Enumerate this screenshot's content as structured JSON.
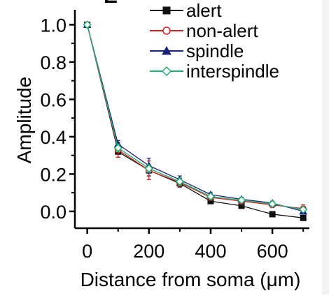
{
  "chart_data": {
    "type": "line",
    "xlabel": "Distance from soma (μm)",
    "ylabel": "Amplitude",
    "xlim": [
      -40,
      720
    ],
    "ylim": [
      -0.09,
      1.08
    ],
    "xticks": [
      0,
      200,
      400,
      600
    ],
    "xtick_labels": [
      "0",
      "200",
      "400",
      "600"
    ],
    "yticks": [
      0.0,
      0.2,
      0.4,
      0.6,
      0.8,
      1.0
    ],
    "ytick_labels": [
      "0.0",
      "0.2",
      "0.4",
      "0.6",
      "0.8",
      "1.0"
    ],
    "x_minor_ticks": [
      100,
      300,
      500,
      700
    ],
    "y_minor_ticks": [
      0.1,
      0.3,
      0.5,
      0.7,
      0.9
    ],
    "grid": false,
    "legend_position": "top-right",
    "x": [
      0,
      100,
      200,
      300,
      400,
      500,
      600,
      700
    ],
    "series": [
      {
        "name": "alert",
        "color": "#111111",
        "marker": "square-filled",
        "values": [
          1.0,
          0.32,
          0.22,
          0.15,
          0.055,
          0.03,
          -0.015,
          -0.035
        ],
        "errors": [
          0.0,
          0.03,
          0.03,
          0.02,
          0.01,
          0.01,
          0.01,
          0.01
        ]
      },
      {
        "name": "non-alert",
        "color": "#d32222",
        "marker": "circle-open",
        "values": [
          1.0,
          0.33,
          0.22,
          0.155,
          0.075,
          0.055,
          0.035,
          0.015
        ],
        "errors": [
          0.0,
          0.04,
          0.05,
          0.02,
          0.015,
          0.015,
          0.015,
          0.02
        ]
      },
      {
        "name": "spindle",
        "color": "#1a237e",
        "marker": "triangle-filled",
        "values": [
          1.0,
          0.36,
          0.245,
          0.17,
          0.09,
          0.065,
          0.045,
          0.0
        ],
        "errors": [
          0.0,
          0.02,
          0.04,
          0.02,
          0.01,
          0.01,
          0.01,
          0.01
        ]
      },
      {
        "name": "interspindle",
        "color": "#20b070",
        "marker": "diamond-open",
        "values": [
          1.0,
          0.34,
          0.23,
          0.16,
          0.08,
          0.06,
          0.04,
          0.01
        ],
        "errors": [
          0.0,
          0.02,
          0.02,
          0.02,
          0.01,
          0.01,
          0.01,
          0.01
        ]
      }
    ]
  }
}
